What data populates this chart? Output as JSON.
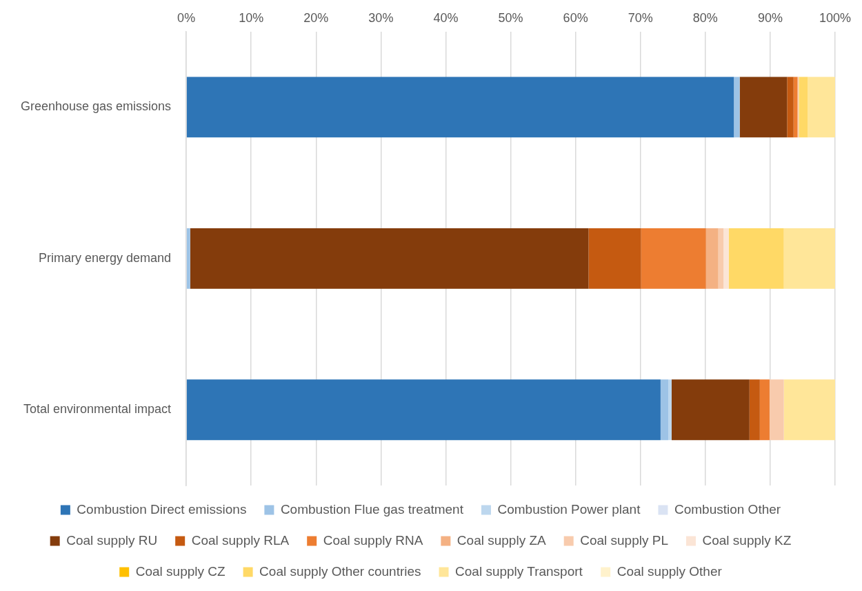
{
  "chart_data": {
    "type": "bar",
    "orientation": "horizontal",
    "stacked": true,
    "categories": [
      "Greenhouse gas emissions",
      "Primary energy demand",
      "Total environmental impact"
    ],
    "series": [
      {
        "name": "Combustion Direct emissions",
        "color": "#2e75b6",
        "values": [
          84.4,
          0,
          73.1
        ]
      },
      {
        "name": "Combustion Flue gas treatment",
        "color": "#9dc3e6",
        "values": [
          0.9,
          0.6,
          1.2
        ]
      },
      {
        "name": "Combustion Power plant",
        "color": "#bdd7ee",
        "values": [
          0,
          0,
          0.5
        ]
      },
      {
        "name": "Combustion Other",
        "color": "#dae3f3",
        "values": [
          0,
          0,
          0
        ]
      },
      {
        "name": "Coal supply RU",
        "color": "#843c0c",
        "values": [
          7.3,
          61.4,
          12.0
        ]
      },
      {
        "name": "Coal supply RLA",
        "color": "#c55a11",
        "values": [
          1.0,
          8.1,
          1.6
        ]
      },
      {
        "name": "Coal supply RNA",
        "color": "#ed7d31",
        "values": [
          0.6,
          10.0,
          1.5
        ]
      },
      {
        "name": "Coal supply ZA",
        "color": "#f4b183",
        "values": [
          0.1,
          1.9,
          0
        ]
      },
      {
        "name": "Coal supply PL",
        "color": "#f8cbad",
        "values": [
          0.1,
          0.8,
          2.2
        ]
      },
      {
        "name": "Coal supply KZ",
        "color": "#fbe5d6",
        "values": [
          0,
          0.8,
          0
        ]
      },
      {
        "name": "Coal supply CZ",
        "color": "#ffc000",
        "values": [
          0,
          0,
          0
        ]
      },
      {
        "name": "Coal supply Other countries",
        "color": "#ffd966",
        "values": [
          1.4,
          8.5,
          0
        ]
      },
      {
        "name": "Coal supply Transport",
        "color": "#ffe699",
        "values": [
          4.2,
          7.9,
          7.9
        ]
      },
      {
        "name": "Coal supply Other",
        "color": "#fff2cc",
        "values": [
          0,
          0,
          0
        ]
      }
    ],
    "xlim": [
      0,
      100
    ],
    "xticks": [
      {
        "value": 0,
        "label": "0%"
      },
      {
        "value": 10,
        "label": "10%"
      },
      {
        "value": 20,
        "label": "20%"
      },
      {
        "value": 30,
        "label": "30%"
      },
      {
        "value": 40,
        "label": "40%"
      },
      {
        "value": 50,
        "label": "50%"
      },
      {
        "value": 60,
        "label": "60%"
      },
      {
        "value": 70,
        "label": "70%"
      },
      {
        "value": 80,
        "label": "80%"
      },
      {
        "value": 90,
        "label": "90%"
      },
      {
        "value": 100,
        "label": "100%"
      }
    ],
    "grid": "x",
    "legend": "bottom"
  }
}
